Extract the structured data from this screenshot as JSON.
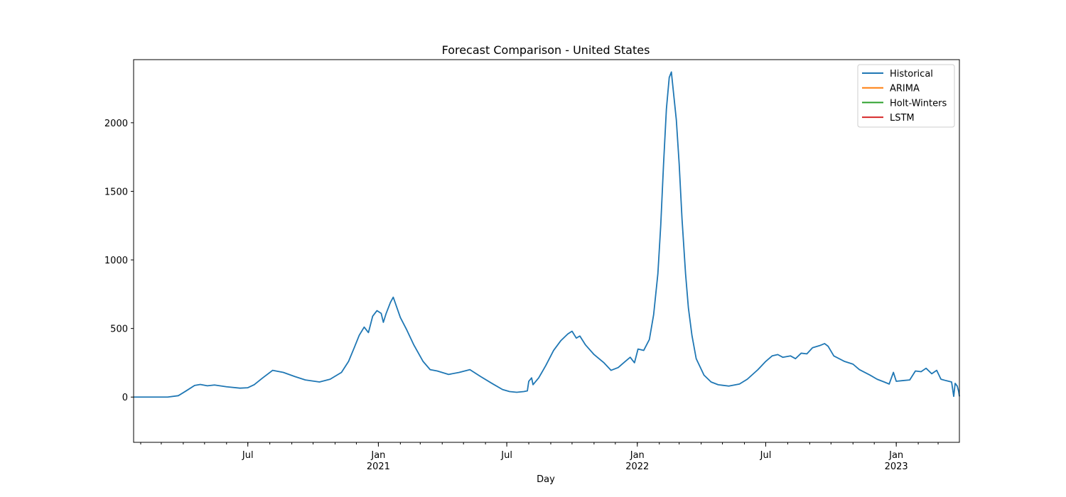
{
  "chart_data": {
    "type": "line",
    "title": "Forecast Comparison - United States",
    "xlabel": "Day",
    "ylabel": "",
    "xlim": [
      "2020-01-22",
      "2023-03-31"
    ],
    "ylim": [
      -330,
      2460
    ],
    "yticks": [
      0,
      500,
      1000,
      1500,
      2000
    ],
    "xticks_major": [
      {
        "date": "2020-07-01",
        "label": "Jul",
        "sublabel": ""
      },
      {
        "date": "2021-01-01",
        "label": "Jan",
        "sublabel": "2021"
      },
      {
        "date": "2021-07-01",
        "label": "Jul",
        "sublabel": ""
      },
      {
        "date": "2022-01-01",
        "label": "Jan",
        "sublabel": "2022"
      },
      {
        "date": "2022-07-01",
        "label": "Jul",
        "sublabel": ""
      },
      {
        "date": "2023-01-01",
        "label": "Jan",
        "sublabel": "2023"
      }
    ],
    "grid": false,
    "legend_position": "top-right",
    "series": [
      {
        "name": "Historical",
        "color": "#1f77b4",
        "points": [
          [
            "2020-01-22",
            0
          ],
          [
            "2020-03-10",
            0
          ],
          [
            "2020-03-25",
            10
          ],
          [
            "2020-04-05",
            45
          ],
          [
            "2020-04-17",
            85
          ],
          [
            "2020-04-25",
            92
          ],
          [
            "2020-05-05",
            82
          ],
          [
            "2020-05-15",
            88
          ],
          [
            "2020-06-01",
            75
          ],
          [
            "2020-06-20",
            65
          ],
          [
            "2020-07-01",
            68
          ],
          [
            "2020-07-10",
            90
          ],
          [
            "2020-07-22",
            140
          ],
          [
            "2020-08-05",
            195
          ],
          [
            "2020-08-20",
            180
          ],
          [
            "2020-09-05",
            150
          ],
          [
            "2020-09-20",
            125
          ],
          [
            "2020-10-10",
            110
          ],
          [
            "2020-10-25",
            130
          ],
          [
            "2020-11-10",
            180
          ],
          [
            "2020-11-20",
            260
          ],
          [
            "2020-11-28",
            360
          ],
          [
            "2020-12-05",
            450
          ],
          [
            "2020-12-12",
            510
          ],
          [
            "2020-12-18",
            470
          ],
          [
            "2020-12-24",
            590
          ],
          [
            "2020-12-30",
            630
          ],
          [
            "2021-01-05",
            610
          ],
          [
            "2021-01-08",
            545
          ],
          [
            "2021-01-12",
            610
          ],
          [
            "2021-01-18",
            690
          ],
          [
            "2021-01-22",
            728
          ],
          [
            "2021-02-01",
            580
          ],
          [
            "2021-02-10",
            490
          ],
          [
            "2021-02-20",
            380
          ],
          [
            "2021-03-05",
            260
          ],
          [
            "2021-03-15",
            200
          ],
          [
            "2021-03-25",
            190
          ],
          [
            "2021-04-10",
            165
          ],
          [
            "2021-04-25",
            180
          ],
          [
            "2021-05-10",
            200
          ],
          [
            "2021-05-25",
            150
          ],
          [
            "2021-06-10",
            100
          ],
          [
            "2021-06-25",
            55
          ],
          [
            "2021-07-05",
            40
          ],
          [
            "2021-07-15",
            35
          ],
          [
            "2021-07-25",
            40
          ],
          [
            "2021-07-30",
            45
          ],
          [
            "2021-08-01",
            115
          ],
          [
            "2021-08-05",
            140
          ],
          [
            "2021-08-07",
            90
          ],
          [
            "2021-08-15",
            140
          ],
          [
            "2021-08-25",
            230
          ],
          [
            "2021-09-05",
            340
          ],
          [
            "2021-09-15",
            410
          ],
          [
            "2021-09-25",
            460
          ],
          [
            "2021-10-01",
            480
          ],
          [
            "2021-10-07",
            430
          ],
          [
            "2021-10-12",
            445
          ],
          [
            "2021-10-20",
            380
          ],
          [
            "2021-11-01",
            310
          ],
          [
            "2021-11-15",
            250
          ],
          [
            "2021-11-25",
            195
          ],
          [
            "2021-12-05",
            215
          ],
          [
            "2021-12-15",
            260
          ],
          [
            "2021-12-22",
            290
          ],
          [
            "2021-12-28",
            250
          ],
          [
            "2022-01-02",
            350
          ],
          [
            "2022-01-10",
            340
          ],
          [
            "2022-01-18",
            420
          ],
          [
            "2022-01-24",
            600
          ],
          [
            "2022-01-30",
            900
          ],
          [
            "2022-02-03",
            1250
          ],
          [
            "2022-02-07",
            1700
          ],
          [
            "2022-02-11",
            2100
          ],
          [
            "2022-02-15",
            2330
          ],
          [
            "2022-02-18",
            2370
          ],
          [
            "2022-02-21",
            2220
          ],
          [
            "2022-02-25",
            2020
          ],
          [
            "2022-03-01",
            1700
          ],
          [
            "2022-03-05",
            1300
          ],
          [
            "2022-03-10",
            900
          ],
          [
            "2022-03-14",
            650
          ],
          [
            "2022-03-19",
            450
          ],
          [
            "2022-03-25",
            280
          ],
          [
            "2022-04-05",
            160
          ],
          [
            "2022-04-15",
            110
          ],
          [
            "2022-04-25",
            90
          ],
          [
            "2022-05-10",
            80
          ],
          [
            "2022-05-25",
            95
          ],
          [
            "2022-06-05",
            130
          ],
          [
            "2022-06-20",
            200
          ],
          [
            "2022-07-01",
            260
          ],
          [
            "2022-07-10",
            300
          ],
          [
            "2022-07-18",
            310
          ],
          [
            "2022-07-25",
            290
          ],
          [
            "2022-08-05",
            300
          ],
          [
            "2022-08-12",
            280
          ],
          [
            "2022-08-20",
            320
          ],
          [
            "2022-08-28",
            315
          ],
          [
            "2022-09-05",
            360
          ],
          [
            "2022-09-15",
            375
          ],
          [
            "2022-09-22",
            390
          ],
          [
            "2022-09-27",
            370
          ],
          [
            "2022-10-05",
            300
          ],
          [
            "2022-10-20",
            260
          ],
          [
            "2022-11-01",
            240
          ],
          [
            "2022-11-10",
            200
          ],
          [
            "2022-11-25",
            160
          ],
          [
            "2022-12-05",
            130
          ],
          [
            "2022-12-15",
            110
          ],
          [
            "2022-12-22",
            95
          ],
          [
            "2022-12-28",
            180
          ],
          [
            "2023-01-01",
            115
          ],
          [
            "2023-01-10",
            120
          ],
          [
            "2023-01-20",
            125
          ],
          [
            "2023-01-28",
            190
          ],
          [
            "2023-02-05",
            185
          ],
          [
            "2023-02-12",
            210
          ],
          [
            "2023-02-20",
            170
          ],
          [
            "2023-02-27",
            195
          ],
          [
            "2023-03-05",
            130
          ],
          [
            "2023-03-12",
            120
          ],
          [
            "2023-03-20",
            110
          ],
          [
            "2023-03-23",
            5
          ],
          [
            "2023-03-25",
            100
          ],
          [
            "2023-03-28",
            80
          ],
          [
            "2023-03-29",
            60
          ],
          [
            "2023-03-30",
            40
          ],
          [
            "2023-03-31",
            5
          ]
        ]
      },
      {
        "name": "ARIMA",
        "color": "#ff7f0e",
        "points": []
      },
      {
        "name": "Holt-Winters",
        "color": "#2ca02c",
        "points": []
      },
      {
        "name": "LSTM",
        "color": "#d62728",
        "points": []
      }
    ]
  }
}
